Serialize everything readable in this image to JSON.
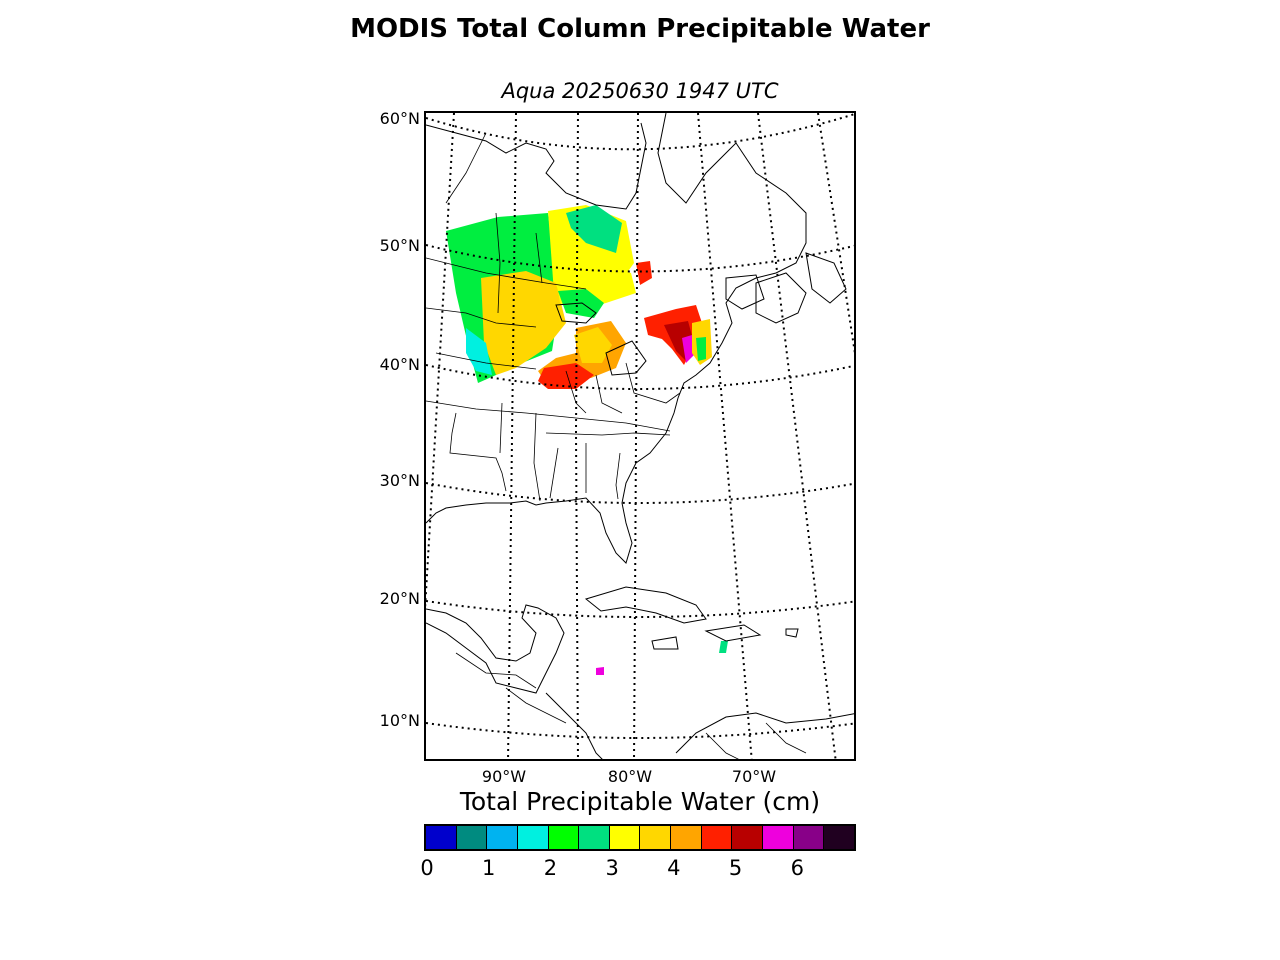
{
  "title": "MODIS Total Column Precipitable Water",
  "subtitle": "Aqua 20250630 1947 UTC",
  "map": {
    "lat_labels": [
      "60°N",
      "50°N",
      "40°N",
      "30°N",
      "20°N",
      "10°N"
    ],
    "lon_labels": [
      "90°W",
      "80°W",
      "70°W"
    ]
  },
  "colorbar": {
    "title": "Total Precipitable Water (cm)",
    "colors": [
      "#0000cc",
      "#008b80",
      "#00b3f0",
      "#00f0e0",
      "#00ff00",
      "#00e080",
      "#ffff00",
      "#ffd700",
      "#ffa500",
      "#ff2000",
      "#b80000",
      "#ee00dd",
      "#880088",
      "#200020"
    ],
    "tick_labels": [
      "0",
      "1",
      "2",
      "3",
      "4",
      "5",
      "6"
    ]
  }
}
